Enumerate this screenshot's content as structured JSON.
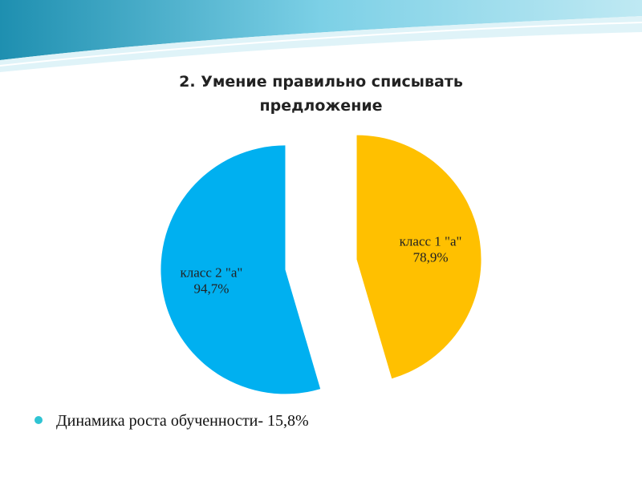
{
  "chart_data": {
    "type": "pie",
    "title": "2. Умение правильно списывать предложение",
    "categories": [
      "класс 1 \"а\"",
      "класс 2 \"а\""
    ],
    "values": [
      78.9,
      94.7
    ],
    "value_labels": [
      "78,9%",
      "94,7%"
    ],
    "colors": [
      "#ffc000",
      "#00b0f0"
    ],
    "exploded": true
  },
  "bullets": [
    "Динамика роста обученности- 15,8%"
  ]
}
